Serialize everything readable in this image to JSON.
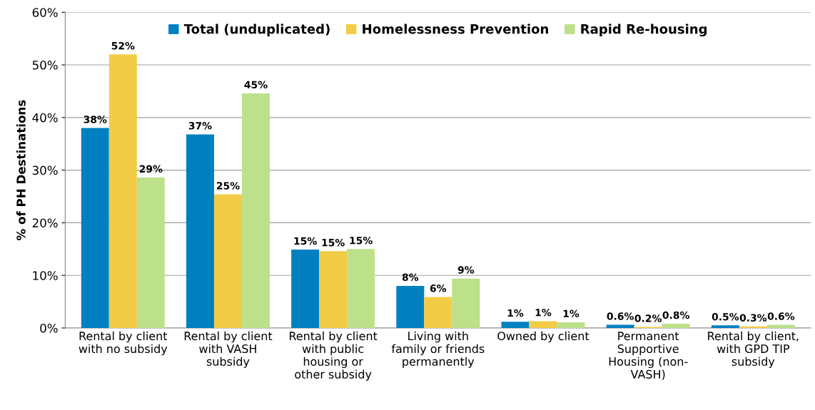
{
  "chart_data": {
    "type": "bar",
    "ylabel": "% of PH Destinations",
    "categories": [
      "Rental by client\nwith no subsidy",
      "Rental by client\nwith VASH\nsubsidy",
      "Rental by client\nwith public\nhousing or\nother subsidy",
      "Living with\nfamily or friends\npermanently",
      "Owned by client",
      "Permanent\nSupportive\nHousing (non-\nVASH)",
      "Rental by client,\nwith GPD TIP\nsubsidy"
    ],
    "series": [
      {
        "name": "Total (unduplicated)",
        "color": "#0080c0",
        "values": [
          38.0,
          36.8,
          14.9,
          8.0,
          1.2,
          0.6,
          0.5
        ],
        "value_labels": [
          "38%",
          "37%",
          "15%",
          "8%",
          "1%",
          "0.6%",
          "0.5%"
        ]
      },
      {
        "name": "Homelessness Prevention",
        "color": "#f2cc46",
        "values": [
          52.0,
          25.4,
          14.6,
          5.9,
          1.3,
          0.2,
          0.3
        ],
        "value_labels": [
          "52%",
          "25%",
          "15%",
          "6%",
          "1%",
          "0.2%",
          "0.3%"
        ]
      },
      {
        "name": "Rapid Re-housing",
        "color": "#bde08a",
        "values": [
          28.6,
          44.6,
          15.0,
          9.4,
          1.1,
          0.8,
          0.6
        ],
        "value_labels": [
          "29%",
          "45%",
          "15%",
          "9%",
          "1%",
          "0.8%",
          "0.6%"
        ]
      }
    ],
    "ylim": [
      0,
      60
    ],
    "yticks": [
      {
        "value": 0,
        "label": "0%"
      },
      {
        "value": 10,
        "label": "10%"
      },
      {
        "value": 20,
        "label": "20%"
      },
      {
        "value": 30,
        "label": "30%"
      },
      {
        "value": 40,
        "label": "40%"
      },
      {
        "value": 50,
        "label": "50%"
      },
      {
        "value": 60,
        "label": "60%"
      }
    ],
    "grid": "y",
    "legend": "top"
  }
}
